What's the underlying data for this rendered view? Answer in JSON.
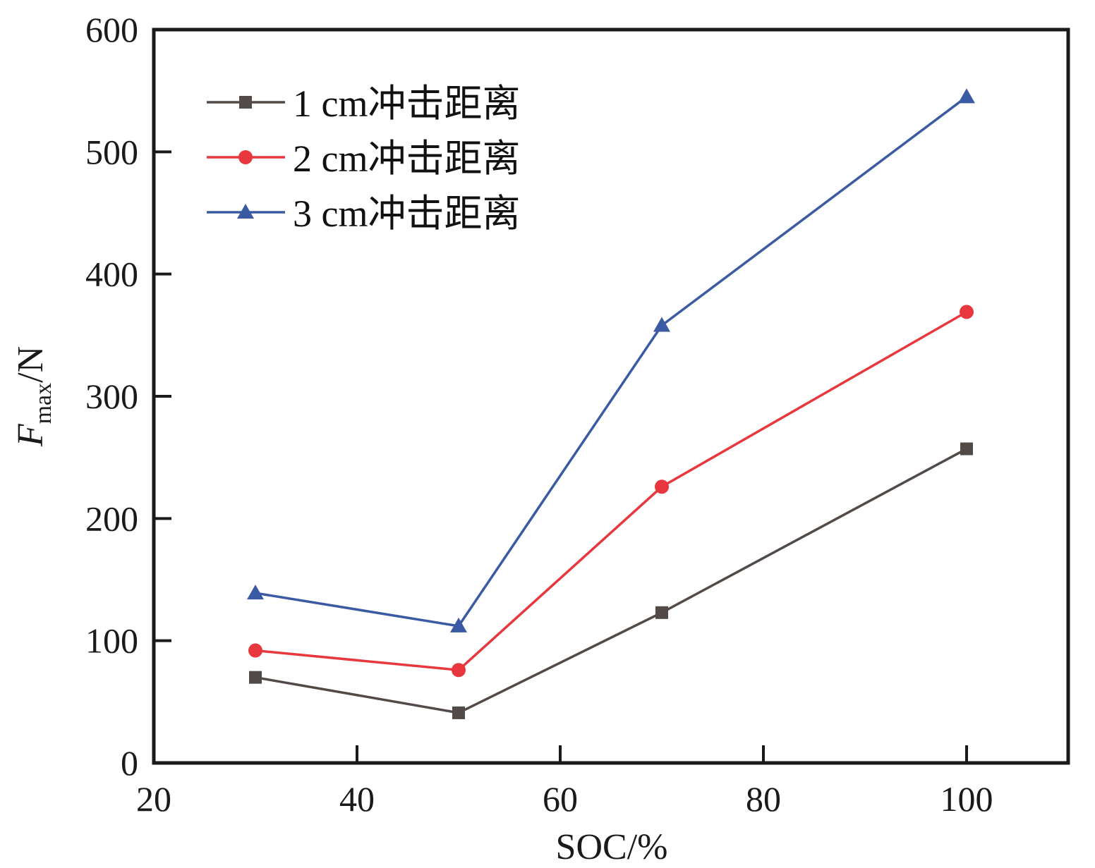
{
  "chart_data": {
    "type": "line",
    "title": "",
    "xlabel": "SOC/%",
    "ylabel": {
      "main": "F",
      "subscript": "max",
      "suffix": "/N"
    },
    "xlim": [
      20,
      110
    ],
    "ylim": [
      0,
      600
    ],
    "xticks": [
      20,
      40,
      60,
      80,
      100
    ],
    "yticks": [
      0,
      100,
      200,
      300,
      400,
      500,
      600
    ],
    "grid": false,
    "legend_position": "top-left",
    "x": [
      30,
      50,
      70,
      100
    ],
    "series": [
      {
        "name": "1 cm冲击距离",
        "color": "#524a47",
        "marker": "square",
        "values": [
          70,
          41,
          123,
          257
        ]
      },
      {
        "name": "2 cm冲击距离",
        "color": "#e8383d",
        "marker": "circle",
        "values": [
          92,
          76,
          226,
          369
        ]
      },
      {
        "name": "3 cm冲击距离",
        "color": "#3a5ba3",
        "marker": "triangle",
        "values": [
          139,
          112,
          358,
          545
        ]
      }
    ]
  }
}
